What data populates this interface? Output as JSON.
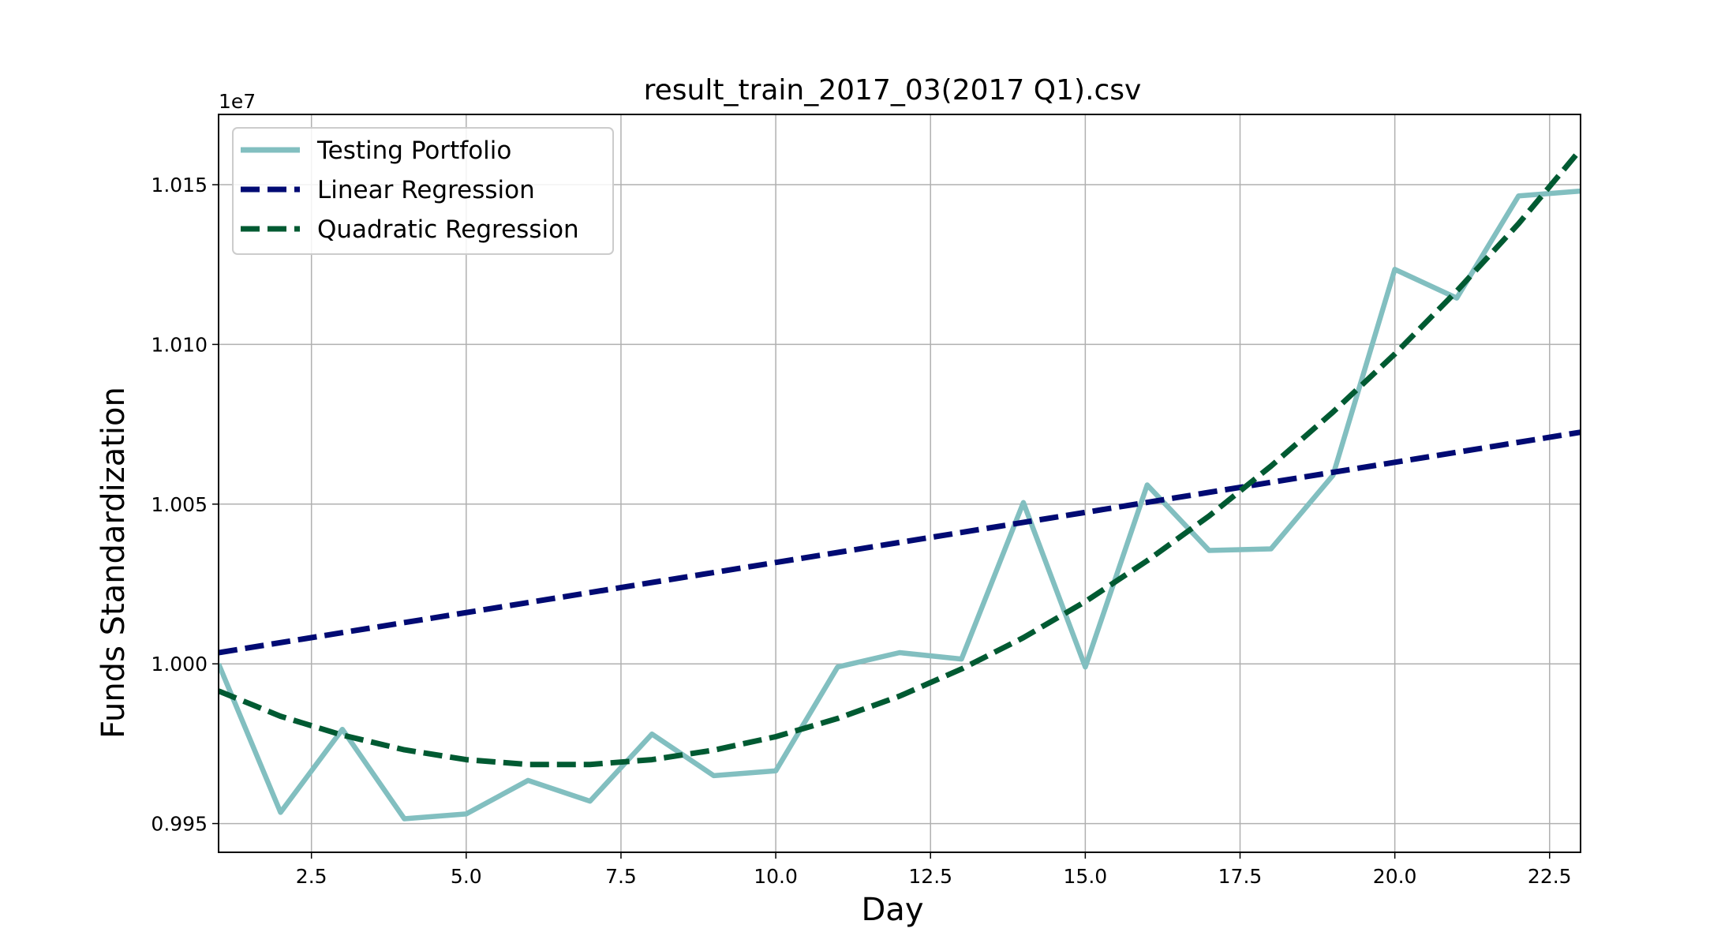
{
  "chart_data": {
    "type": "line",
    "title": "result_train_2017_03(2017 Q1).csv",
    "xlabel": "Day",
    "ylabel": "Funds Standardization",
    "y_offset_label": "1e7",
    "xlim": [
      1,
      23
    ],
    "ylim": [
      9941000,
      10172000
    ],
    "x_ticks": [
      2.5,
      5.0,
      7.5,
      10.0,
      12.5,
      15.0,
      17.5,
      20.0,
      22.5
    ],
    "x_tick_labels": [
      "2.5",
      "5.0",
      "7.5",
      "10.0",
      "12.5",
      "15.0",
      "17.5",
      "20.0",
      "22.5"
    ],
    "y_ticks": [
      9950000,
      10000000,
      10050000,
      10100000,
      10150000
    ],
    "y_tick_labels": [
      "0.995",
      "1.000",
      "1.005",
      "1.010",
      "1.015"
    ],
    "grid": true,
    "legend_position": "top-left",
    "series": [
      {
        "name": "Testing Portfolio",
        "style": "solid",
        "color": "#82bfc0",
        "x": [
          1,
          2,
          3,
          4,
          5,
          6,
          7,
          8,
          9,
          10,
          11,
          12,
          13,
          14,
          15,
          16,
          17,
          18,
          19,
          20,
          21,
          22,
          23
        ],
        "y": [
          10000000,
          9953500,
          9979500,
          9951500,
          9953000,
          9963500,
          9957000,
          9978000,
          9965000,
          9966500,
          9999000,
          10003500,
          10001500,
          10050500,
          9999000,
          10056000,
          10035500,
          10036000,
          10059000,
          10123500,
          10114500,
          10146500,
          10148000
        ]
      },
      {
        "name": "Linear Regression",
        "style": "dashed",
        "color": "#000a73",
        "x": [
          1,
          23
        ],
        "y": [
          10003500,
          10072500
        ]
      },
      {
        "name": "Quadratic Regression",
        "style": "dashed",
        "color": "#005a32",
        "x": [
          1,
          2,
          3,
          4,
          5,
          6,
          7,
          8,
          9,
          10,
          11,
          12,
          13,
          14,
          15,
          16,
          17,
          18,
          19,
          20,
          21,
          22,
          23
        ],
        "y": [
          9991500,
          9983600,
          9977700,
          9973100,
          9970000,
          9968500,
          9968500,
          9970000,
          9973000,
          9977200,
          9982900,
          9989900,
          9998400,
          10008200,
          10019500,
          10032300,
          10046300,
          10061900,
          10078800,
          10097000,
          10116700,
          10137800,
          10161000
        ]
      }
    ]
  }
}
